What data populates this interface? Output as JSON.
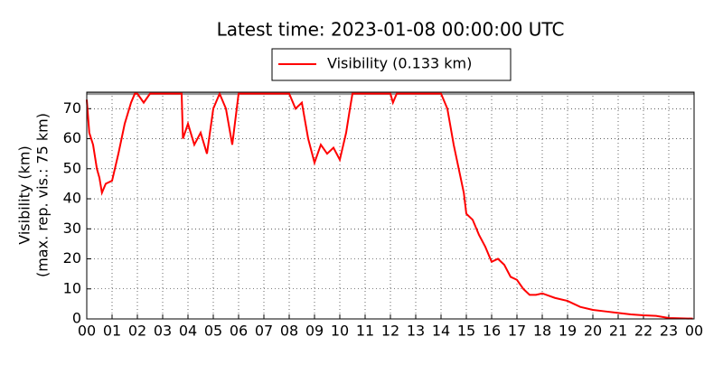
{
  "chart_data": {
    "type": "line",
    "title": "Latest time: 2023-01-08 00:00:00 UTC",
    "y_label": [
      "Visibility (km)",
      "(max. rep. vis.: 75 km)"
    ],
    "x": [
      0,
      0.1,
      0.25,
      0.4,
      0.5,
      0.6,
      0.75,
      1.0,
      1.25,
      1.5,
      1.75,
      1.9,
      2.0,
      2.25,
      2.5,
      2.75,
      3.0,
      3.25,
      3.5,
      3.75,
      3.8,
      4.0,
      4.25,
      4.5,
      4.75,
      5.0,
      5.25,
      5.5,
      5.75,
      6.0,
      6.5,
      7.0,
      7.5,
      8.0,
      8.25,
      8.5,
      8.75,
      9.0,
      9.25,
      9.5,
      9.75,
      10.0,
      10.25,
      10.4,
      10.5,
      11.0,
      11.5,
      12.0,
      12.1,
      12.25,
      12.5,
      13.0,
      13.5,
      14.0,
      14.25,
      14.5,
      14.75,
      14.9,
      15.0,
      15.25,
      15.5,
      15.75,
      16.0,
      16.25,
      16.5,
      16.75,
      17.0,
      17.25,
      17.5,
      17.75,
      18.0,
      18.5,
      19.0,
      19.5,
      20.0,
      20.5,
      21.0,
      21.5,
      22.0,
      22.5,
      23.0,
      23.5,
      23.95
    ],
    "series": [
      {
        "name": "Visibility (0.133 km)",
        "color": "#ff0000",
        "values": [
          73,
          62,
          58,
          50,
          47,
          42,
          45,
          46,
          55,
          65,
          72,
          75,
          75,
          72,
          75,
          75,
          75,
          75,
          75,
          75,
          60,
          65,
          58,
          62,
          55,
          70,
          75,
          70,
          58,
          75,
          75,
          75,
          75,
          75,
          70,
          72,
          60,
          52,
          58,
          55,
          57,
          53,
          62,
          70,
          75,
          75,
          75,
          75,
          72,
          75,
          75,
          75,
          75,
          75,
          70,
          58,
          48,
          42,
          35,
          33,
          28,
          24,
          19,
          20,
          18,
          14,
          13,
          10,
          8,
          8,
          8.5,
          7,
          6,
          4,
          3,
          2.5,
          2,
          1.5,
          1.2,
          1,
          0.3,
          0.2,
          0.1
        ]
      }
    ],
    "hline": {
      "value": 75,
      "color": "#999999"
    },
    "xlim": [
      0,
      24
    ],
    "xticks": [
      {
        "value": 0,
        "label": "00"
      },
      {
        "value": 1,
        "label": "01"
      },
      {
        "value": 2,
        "label": "02"
      },
      {
        "value": 3,
        "label": "03"
      },
      {
        "value": 4,
        "label": "04"
      },
      {
        "value": 5,
        "label": "05"
      },
      {
        "value": 6,
        "label": "06"
      },
      {
        "value": 7,
        "label": "07"
      },
      {
        "value": 8,
        "label": "08"
      },
      {
        "value": 9,
        "label": "09"
      },
      {
        "value": 10,
        "label": "10"
      },
      {
        "value": 11,
        "label": "11"
      },
      {
        "value": 12,
        "label": "12"
      },
      {
        "value": 13,
        "label": "13"
      },
      {
        "value": 14,
        "label": "14"
      },
      {
        "value": 15,
        "label": "15"
      },
      {
        "value": 16,
        "label": "16"
      },
      {
        "value": 17,
        "label": "17"
      },
      {
        "value": 18,
        "label": "18"
      },
      {
        "value": 19,
        "label": "19"
      },
      {
        "value": 20,
        "label": "20"
      },
      {
        "value": 21,
        "label": "21"
      },
      {
        "value": 22,
        "label": "22"
      },
      {
        "value": 23,
        "label": "23"
      },
      {
        "value": 24,
        "label": "00"
      }
    ],
    "ylim": [
      0,
      75.5
    ],
    "yticks": [
      0,
      10,
      20,
      30,
      40,
      50,
      60,
      70
    ],
    "grid": true
  }
}
